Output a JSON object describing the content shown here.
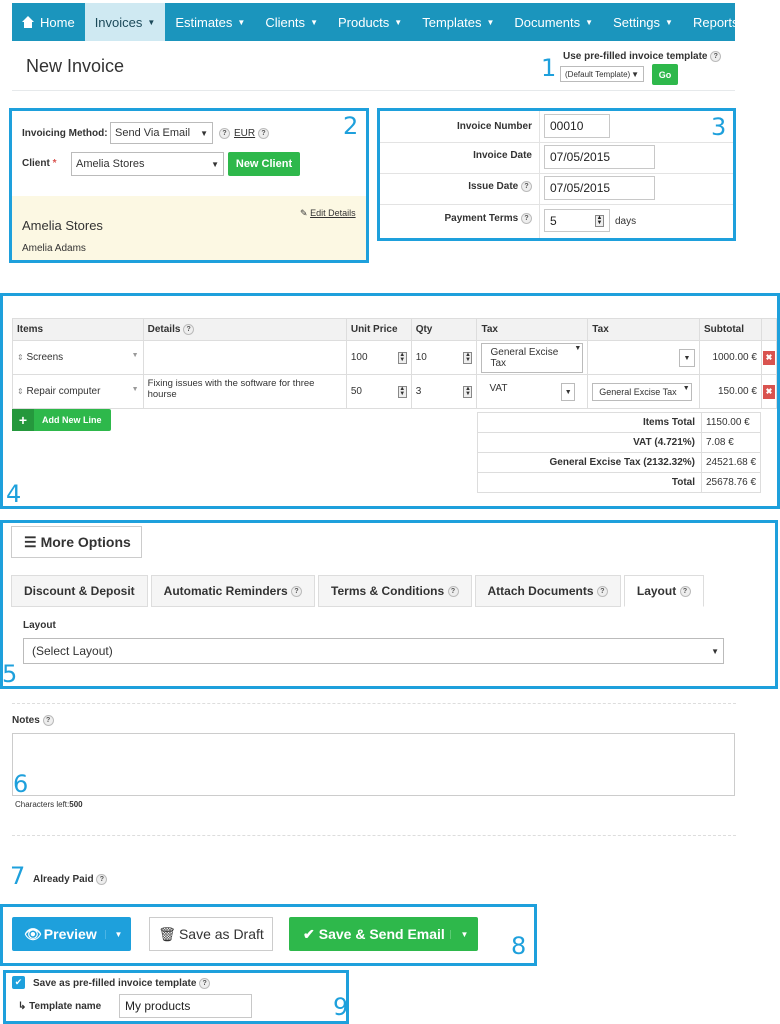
{
  "nav": {
    "items": [
      {
        "label": "Home"
      },
      {
        "label": "Invoices"
      },
      {
        "label": "Estimates"
      },
      {
        "label": "Clients"
      },
      {
        "label": "Products"
      },
      {
        "label": "Templates"
      },
      {
        "label": "Documents"
      },
      {
        "label": "Settings"
      },
      {
        "label": "Reports"
      }
    ]
  },
  "header": {
    "title": "New Invoice",
    "template_label": "Use pre-filled invoice template",
    "template_value": "(Default Template)",
    "go_label": "Go"
  },
  "callouts": [
    "1",
    "2",
    "3",
    "4",
    "5",
    "6",
    "7",
    "8",
    "9"
  ],
  "client_box": {
    "method_label": "Invoicing Method:",
    "method_value": "Send Via Email",
    "currency": "EUR",
    "client_label": "Client",
    "required_mark": "*",
    "client_value": "Amelia Stores",
    "new_client_label": "New Client",
    "edit_label": "Edit Details",
    "client_name": "Amelia Stores",
    "contact_name": "Amelia Adams"
  },
  "invoice_meta": {
    "number_label": "Invoice Number",
    "number_value": "00010",
    "date_label": "Invoice Date",
    "date_value": "07/05/2015",
    "issue_label": "Issue Date",
    "issue_value": "07/05/2015",
    "terms_label": "Payment Terms",
    "terms_value": "5",
    "terms_unit": "days"
  },
  "items_table": {
    "headers": [
      "Items",
      "Details",
      "Unit Price",
      "Qty",
      "Tax",
      "Tax",
      "Subtotal"
    ],
    "rows": [
      {
        "item": "Screens",
        "details": "",
        "price": "100",
        "qty": "10",
        "tax1": "General Excise Tax",
        "tax2": "",
        "subtotal": "1000.00 €"
      },
      {
        "item": "Repair computer",
        "details": "Fixing issues with the software for three hourse",
        "price": "50",
        "qty": "3",
        "tax1": "VAT",
        "tax2": "General Excise Tax",
        "subtotal": "150.00 €"
      }
    ],
    "add_line_label": "Add New Line",
    "totals": [
      {
        "label": "Items Total",
        "value": "1150.00 €"
      },
      {
        "label": "VAT (4.721%)",
        "value": "7.08 €"
      },
      {
        "label": "General Excise Tax (2132.32%)",
        "value": "24521.68 €"
      },
      {
        "label": "Total",
        "value": "25678.76 €"
      }
    ]
  },
  "options": {
    "more_label": "More Options",
    "tabs": [
      {
        "label": "Discount & Deposit"
      },
      {
        "label": "Automatic Reminders"
      },
      {
        "label": "Terms & Conditions"
      },
      {
        "label": "Attach Documents"
      },
      {
        "label": "Layout"
      }
    ],
    "layout_label": "Layout",
    "layout_value": "(Select Layout)"
  },
  "notes": {
    "label": "Notes",
    "chars_label": "Characters left:",
    "chars_value": "500"
  },
  "paid": {
    "label": "Already Paid"
  },
  "actions": {
    "preview": "Preview",
    "draft": "Save as Draft",
    "send": "Save & Send Email"
  },
  "template_save": {
    "checkbox_label": "Save as pre-filled invoice template",
    "name_label": "Template name",
    "name_value": "My products"
  },
  "colors": {
    "nav": "#1b95bd",
    "accent": "#1ea0dc",
    "green": "#2eb84b"
  }
}
